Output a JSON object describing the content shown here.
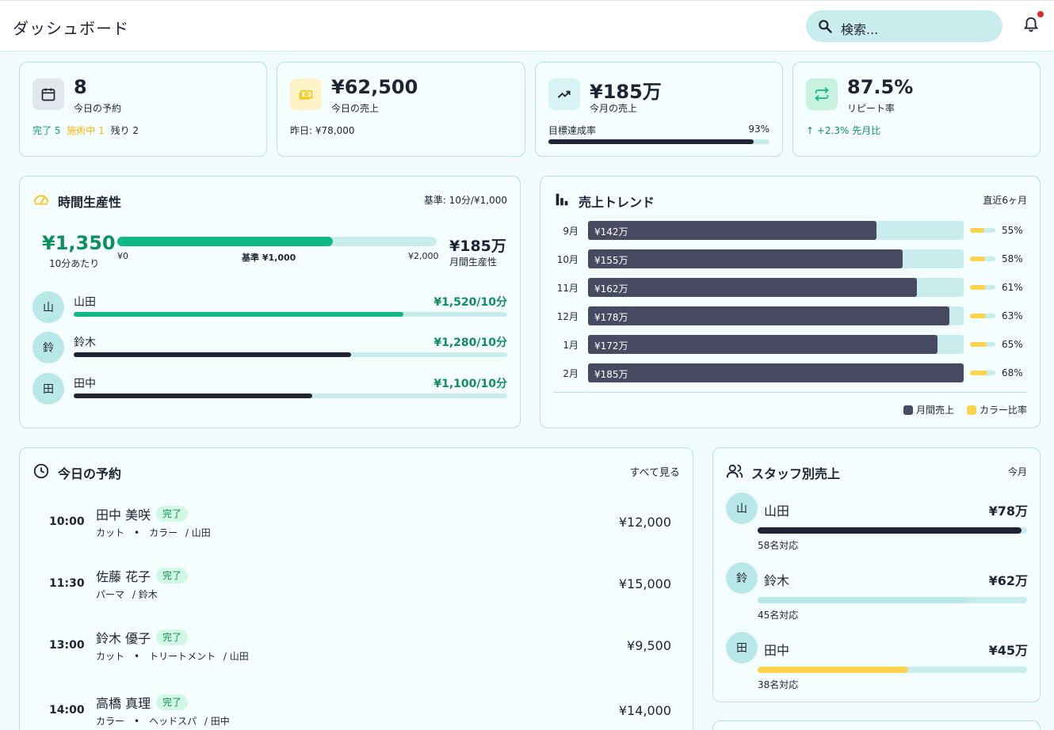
{
  "header": {
    "title": "ダッシュボード",
    "search_placeholder": "検索..."
  },
  "colors": {
    "accent": "#10b981",
    "dark": "#1f2333",
    "bar": "#474a60",
    "track": "#c9ecec",
    "yellow": "#fcd34d",
    "green_text": "#0f8f5e",
    "alert": "#e02b2b"
  },
  "stats": {
    "appointments": {
      "icon": "calendar-icon",
      "value": "8",
      "label": "今日の予約",
      "done": "完了 5",
      "in_progress": "施術中 1",
      "remaining": "残り 2"
    },
    "today_sales": {
      "icon": "cash-icon",
      "value": "¥62,500",
      "label": "今日の売上",
      "yesterday": "昨日: ¥78,000"
    },
    "month_sales": {
      "icon": "trending-up-icon",
      "value": "¥185万",
      "label": "今月の売上",
      "goal_label": "目標達成率",
      "goal_pct": "93%",
      "goal_fraction": 0.93
    },
    "repeat": {
      "icon": "repeat-icon",
      "value": "87.5%",
      "label": "リピート率",
      "change": "+2.3% 先月比"
    }
  },
  "productivity": {
    "title": "時間生産性",
    "meta": "基準: 10分/¥1,000",
    "value": "¥1,350",
    "value_sub": "10分あたり",
    "bar_fraction": 0.675,
    "tick_min": "¥0",
    "tick_mid": "基準 ¥1,000",
    "tick_max": "¥2,000",
    "monthly_value": "¥185万",
    "monthly_sub": "月間生産性",
    "staff": [
      {
        "initial": "山",
        "name": "山田",
        "rate": "¥1,520/10分",
        "fraction": 0.76,
        "color": "#10b981"
      },
      {
        "initial": "鈴",
        "name": "鈴木",
        "rate": "¥1,280/10分",
        "fraction": 0.64,
        "color": "#1f2333"
      },
      {
        "initial": "田",
        "name": "田中",
        "rate": "¥1,100/10分",
        "fraction": 0.55,
        "color": "#1f2333"
      }
    ]
  },
  "trend": {
    "title": "売上トレンド",
    "meta": "直近6ヶ月",
    "legend_sales": "月間売上",
    "legend_color": "カラー比率",
    "rows": [
      {
        "month": "9月",
        "label": "¥142万",
        "value": 142,
        "color_pct": "55%",
        "color_ratio": 0.55
      },
      {
        "month": "10月",
        "label": "¥155万",
        "value": 155,
        "color_pct": "58%",
        "color_ratio": 0.58
      },
      {
        "month": "11月",
        "label": "¥162万",
        "value": 162,
        "color_pct": "61%",
        "color_ratio": 0.61
      },
      {
        "month": "12月",
        "label": "¥178万",
        "value": 178,
        "color_pct": "63%",
        "color_ratio": 0.63
      },
      {
        "month": "1月",
        "label": "¥172万",
        "value": 172,
        "color_pct": "65%",
        "color_ratio": 0.65
      },
      {
        "month": "2月",
        "label": "¥185万",
        "value": 185,
        "color_pct": "68%",
        "color_ratio": 0.68
      }
    ],
    "max": 185
  },
  "appointments": {
    "title": "今日の予約",
    "see_all": "すべて見る",
    "items": [
      {
        "time": "10:00",
        "customer": "田中 美咲",
        "status": "完了",
        "services": "カット　•　カラー",
        "staff": "/ 山田",
        "price": "¥12,000"
      },
      {
        "time": "11:30",
        "customer": "佐藤 花子",
        "status": "完了",
        "services": "パーマ",
        "staff": "/ 鈴木",
        "price": "¥15,000"
      },
      {
        "time": "13:00",
        "customer": "鈴木 優子",
        "status": "完了",
        "services": "カット　•　トリートメント",
        "staff": "/ 山田",
        "price": "¥9,500"
      },
      {
        "time": "14:00",
        "customer": "高橋 真理",
        "status": "完了",
        "services": "カラー　•　ヘッドスパ",
        "staff": "/ 田中",
        "price": "¥14,000"
      }
    ]
  },
  "staff_sales": {
    "title": "スタッフ別売上",
    "meta": "今月",
    "rows": [
      {
        "initial": "山",
        "name": "山田",
        "amount": "¥78万",
        "count": "58名対応",
        "fraction": 0.98,
        "color": "#1f2333"
      },
      {
        "initial": "鈴",
        "name": "鈴木",
        "amount": "¥62万",
        "count": "45名対応",
        "fraction": 0.78,
        "color": "#b9e8e8"
      },
      {
        "initial": "田",
        "name": "田中",
        "amount": "¥45万",
        "count": "38名対応",
        "fraction": 0.56,
        "color": "#fcd34d"
      }
    ]
  }
}
